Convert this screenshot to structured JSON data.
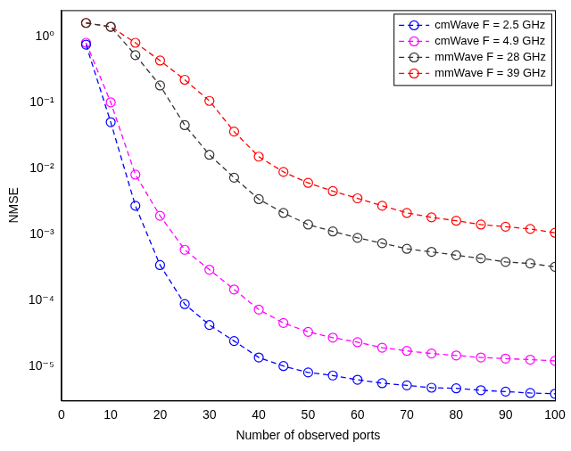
{
  "chart_data": {
    "type": "line",
    "x_label": "Number of observed ports",
    "y_label": "NMSE",
    "x": [
      5,
      10,
      15,
      20,
      25,
      30,
      35,
      40,
      45,
      50,
      55,
      60,
      65,
      70,
      75,
      80,
      85,
      90,
      95,
      100
    ],
    "series": [
      {
        "name": "cmWave F = 2.5 GHz",
        "color": "#0000ff",
        "marker": "circle",
        "line_style": "dashed",
        "values": [
          0.75,
          0.05,
          0.0027,
          0.00034,
          8.7e-05,
          4.2e-05,
          2.4e-05,
          1.35e-05,
          1e-05,
          8e-06,
          7.2e-06,
          6.2e-06,
          5.5e-06,
          5.1e-06,
          4.7e-06,
          4.6e-06,
          4.3e-06,
          4.1e-06,
          3.9e-06,
          3.8e-06
        ]
      },
      {
        "name": "cmWave F = 4.9 GHz",
        "color": "#ff00ff",
        "marker": "circle",
        "line_style": "dashed",
        "values": [
          0.8,
          0.1,
          0.008,
          0.0019,
          0.00058,
          0.00029,
          0.000145,
          7.2e-05,
          4.5e-05,
          3.3e-05,
          2.7e-05,
          2.3e-05,
          1.9e-05,
          1.7e-05,
          1.55e-05,
          1.45e-05,
          1.35e-05,
          1.3e-05,
          1.25e-05,
          1.2e-05
        ]
      },
      {
        "name": "mmWave F = 28 GHz",
        "color": "#333333",
        "marker": "circle",
        "line_style": "dashed",
        "values": [
          1.6,
          1.4,
          0.52,
          0.18,
          0.045,
          0.016,
          0.0072,
          0.0034,
          0.0021,
          0.0014,
          0.0011,
          0.00088,
          0.00073,
          0.0006,
          0.00054,
          0.00048,
          0.00043,
          0.00038,
          0.00036,
          0.00032
        ]
      },
      {
        "name": "mmWave F = 39 GHz",
        "color": "#ff0000",
        "marker": "circle",
        "line_style": "dashed",
        "values": [
          1.6,
          1.4,
          0.8,
          0.43,
          0.22,
          0.105,
          0.036,
          0.015,
          0.0088,
          0.006,
          0.0045,
          0.0035,
          0.0027,
          0.0021,
          0.0018,
          0.0016,
          0.0014,
          0.0013,
          0.0012,
          0.00105
        ]
      }
    ],
    "xlim": [
      0,
      100
    ],
    "xticks": [
      0,
      10,
      20,
      30,
      40,
      50,
      60,
      70,
      80,
      90,
      100
    ],
    "ylim": [
      3e-06,
      2.5
    ],
    "yticks": [
      {
        "value": 1e-05,
        "label": "10⁻⁵"
      },
      {
        "value": 0.0001,
        "label": "10⁻⁴"
      },
      {
        "value": 0.001,
        "label": "10⁻³"
      },
      {
        "value": 0.01,
        "label": "10⁻²"
      },
      {
        "value": 0.1,
        "label": "10⁻¹"
      },
      {
        "value": 1,
        "label": "10⁰"
      }
    ],
    "log": "y",
    "grid": false,
    "legend": "top-right"
  }
}
